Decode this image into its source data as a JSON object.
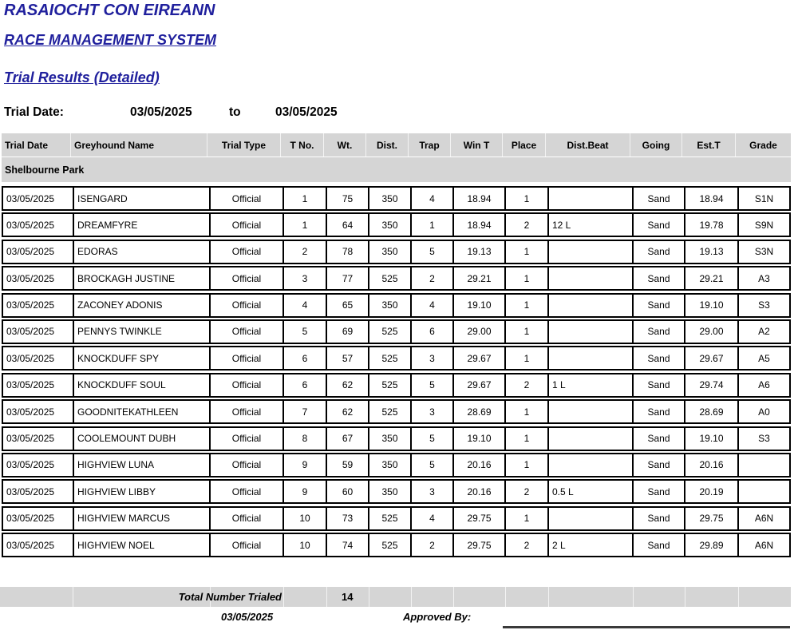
{
  "header": {
    "org_title": "RASAIOCHT CON EIREANN",
    "system_title": "RACE MANAGEMENT SYSTEM",
    "report_title": "Trial Results (Detailed)",
    "trial_date_label": "Trial Date:",
    "date_from": "03/05/2025",
    "to_label": "to",
    "date_to": "03/05/2025",
    "accent_color": "#20209d",
    "band_color": "#d5d5d5"
  },
  "table": {
    "columns": [
      "Trial Date",
      "Greyhound Name",
      "Trial Type",
      "T No.",
      "Wt.",
      "Dist.",
      "Trap",
      "Win T",
      "Place",
      "Dist.Beat",
      "Going",
      "Est.T",
      "Grade"
    ],
    "group_header": "Shelbourne Park",
    "rows": [
      [
        "03/05/2025",
        "ISENGARD",
        "Official",
        "1",
        "75",
        "350",
        "4",
        "18.94",
        "1",
        "",
        "Sand",
        "18.94",
        "S1N"
      ],
      [
        "03/05/2025",
        "DREAMFYRE",
        "Official",
        "1",
        "64",
        "350",
        "1",
        "18.94",
        "2",
        "12 L",
        "Sand",
        "19.78",
        "S9N"
      ],
      [
        "03/05/2025",
        "EDORAS",
        "Official",
        "2",
        "78",
        "350",
        "5",
        "19.13",
        "1",
        "",
        "Sand",
        "19.13",
        "S3N"
      ],
      [
        "03/05/2025",
        "BROCKAGH JUSTINE",
        "Official",
        "3",
        "77",
        "525",
        "2",
        "29.21",
        "1",
        "",
        "Sand",
        "29.21",
        "A3"
      ],
      [
        "03/05/2025",
        "ZACONEY ADONIS",
        "Official",
        "4",
        "65",
        "350",
        "4",
        "19.10",
        "1",
        "",
        "Sand",
        "19.10",
        "S3"
      ],
      [
        "03/05/2025",
        "PENNYS TWINKLE",
        "Official",
        "5",
        "69",
        "525",
        "6",
        "29.00",
        "1",
        "",
        "Sand",
        "29.00",
        "A2"
      ],
      [
        "03/05/2025",
        "KNOCKDUFF SPY",
        "Official",
        "6",
        "57",
        "525",
        "3",
        "29.67",
        "1",
        "",
        "Sand",
        "29.67",
        "A5"
      ],
      [
        "03/05/2025",
        "KNOCKDUFF SOUL",
        "Official",
        "6",
        "62",
        "525",
        "5",
        "29.67",
        "2",
        "1 L",
        "Sand",
        "29.74",
        "A6"
      ],
      [
        "03/05/2025",
        "GOODNITEKATHLEEN",
        "Official",
        "7",
        "62",
        "525",
        "3",
        "28.69",
        "1",
        "",
        "Sand",
        "28.69",
        "A0"
      ],
      [
        "03/05/2025",
        "COOLEMOUNT DUBH",
        "Official",
        "8",
        "67",
        "350",
        "5",
        "19.10",
        "1",
        "",
        "Sand",
        "19.10",
        "S3"
      ],
      [
        "03/05/2025",
        "HIGHVIEW LUNA",
        "Official",
        "9",
        "59",
        "350",
        "5",
        "20.16",
        "1",
        "",
        "Sand",
        "20.16",
        ""
      ],
      [
        "03/05/2025",
        "HIGHVIEW LIBBY",
        "Official",
        "9",
        "60",
        "350",
        "3",
        "20.16",
        "2",
        "0.5 L",
        "Sand",
        "20.19",
        ""
      ],
      [
        "03/05/2025",
        "HIGHVIEW MARCUS",
        "Official",
        "10",
        "73",
        "525",
        "4",
        "29.75",
        "1",
        "",
        "Sand",
        "29.75",
        "A6N"
      ],
      [
        "03/05/2025",
        "HIGHVIEW NOEL",
        "Official",
        "10",
        "74",
        "525",
        "2",
        "29.75",
        "2",
        "2 L",
        "Sand",
        "29.89",
        "A6N"
      ]
    ]
  },
  "footer": {
    "total_label": "Total Number Trialed",
    "total_value": "14",
    "date": "03/05/2025",
    "approved_label": "Approved By:"
  }
}
